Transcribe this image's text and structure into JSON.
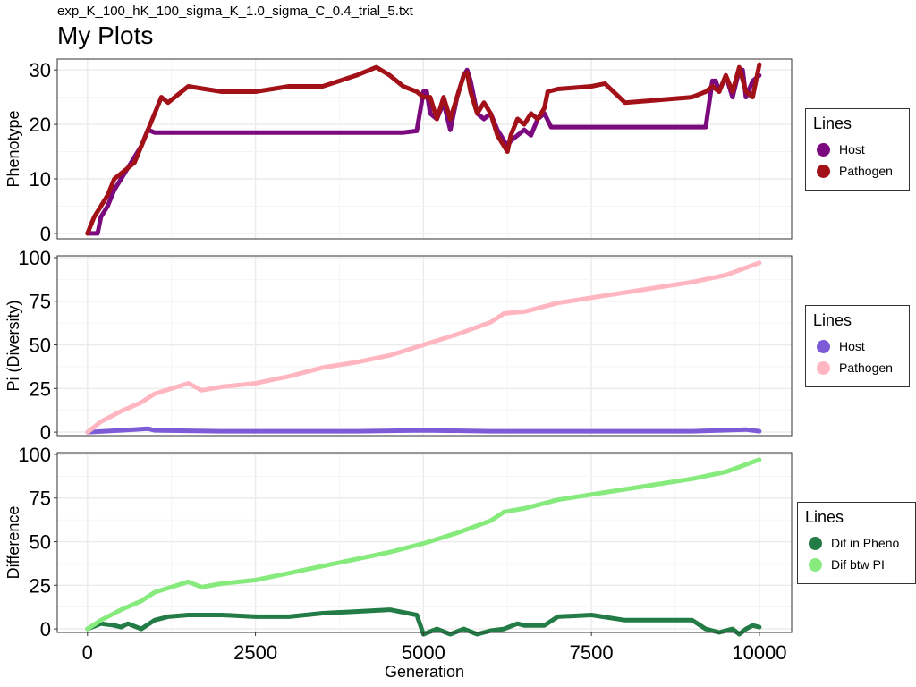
{
  "header": {
    "subtitle": "exp_K_100_hK_100_sigma_K_1.0_sigma_C_0.4_trial_5.txt",
    "title": "My Plots"
  },
  "xaxis": {
    "label": "Generation",
    "ticks": [
      0,
      2500,
      5000,
      7500,
      10000
    ],
    "range": [
      -450,
      10480
    ]
  },
  "panels": [
    {
      "ylabel": "Phenotype",
      "ylim": [
        -1,
        32
      ],
      "yticks": [
        0,
        10,
        20,
        30
      ],
      "legend": {
        "title": "Lines",
        "entries": [
          {
            "label": "Host",
            "color": "#7b0a7e"
          },
          {
            "label": "Pathogen",
            "color": "#a31118"
          }
        ]
      }
    },
    {
      "ylabel": "Pi (Diversity)",
      "ylim": [
        -2,
        101
      ],
      "yticks": [
        0,
        25,
        50,
        75,
        100
      ],
      "legend": {
        "title": "Lines",
        "entries": [
          {
            "label": "Host",
            "color": "#7d5ad6"
          },
          {
            "label": "Pathogen",
            "color": "#ffb6c1"
          }
        ]
      }
    },
    {
      "ylabel": "Difference",
      "ylim": [
        -2,
        101
      ],
      "yticks": [
        0,
        25,
        50,
        75,
        100
      ],
      "legend": {
        "title": "Lines",
        "entries": [
          {
            "label": "Dif in Pheno",
            "color": "#237c46"
          },
          {
            "label": "Dif btw PI",
            "color": "#86ea7d"
          }
        ]
      }
    }
  ],
  "chart_data": [
    {
      "type": "line",
      "title": "",
      "xlabel": "",
      "ylabel": "Phenotype",
      "ylim": [
        -1,
        32
      ],
      "grid": true,
      "legend_position": "right",
      "series": [
        {
          "name": "Host",
          "color": "#7b0a7e",
          "x": [
            0,
            150,
            200,
            300,
            400,
            500,
            550,
            600,
            700,
            800,
            900,
            1000,
            1300,
            2000,
            3000,
            4000,
            4700,
            4900,
            5000,
            5050,
            5100,
            5200,
            5300,
            5400,
            5500,
            5600,
            5650,
            5700,
            5800,
            5900,
            6000,
            6100,
            6200,
            6250,
            6300,
            6400,
            6500,
            6600,
            6700,
            6800,
            6900,
            7000,
            7500,
            8000,
            8500,
            9000,
            9200,
            9300,
            9350,
            9400,
            9500,
            9600,
            9700,
            9750,
            9800,
            9900,
            10000
          ],
          "y": [
            0,
            0,
            3,
            5,
            8,
            10,
            11,
            12,
            14,
            16,
            19,
            18.5,
            18.5,
            18.5,
            18.5,
            18.5,
            18.5,
            18.8,
            26,
            26,
            22,
            21,
            24,
            19,
            25,
            29,
            30,
            28,
            22,
            21,
            22,
            19,
            17,
            16,
            17,
            18,
            19,
            18,
            21,
            22,
            19.5,
            19.5,
            19.5,
            19.5,
            19.5,
            19.5,
            19.5,
            28,
            28,
            26,
            29,
            25,
            30,
            30,
            25,
            28,
            29
          ]
        },
        {
          "name": "Pathogen",
          "color": "#a31118",
          "x": [
            0,
            100,
            200,
            300,
            400,
            500,
            600,
            700,
            800,
            900,
            1000,
            1100,
            1200,
            1500,
            2000,
            2500,
            3000,
            3500,
            4000,
            4300,
            4500,
            4700,
            4900,
            5000,
            5100,
            5200,
            5300,
            5400,
            5500,
            5600,
            5650,
            5700,
            5800,
            5900,
            6000,
            6100,
            6200,
            6250,
            6300,
            6400,
            6500,
            6600,
            6700,
            6800,
            6850,
            7000,
            7500,
            7700,
            8000,
            8500,
            9000,
            9200,
            9300,
            9400,
            9500,
            9600,
            9700,
            9800,
            9900,
            10000
          ],
          "y": [
            0,
            3,
            5,
            7,
            10,
            11,
            12,
            13,
            16,
            19,
            22,
            25,
            24,
            27,
            26,
            26,
            27,
            27,
            29,
            30.5,
            29,
            27,
            26,
            25,
            25,
            21,
            25,
            21,
            25,
            29,
            29.5,
            26,
            22,
            24,
            22,
            18,
            16,
            15,
            18,
            21,
            20,
            22,
            21,
            23,
            26,
            26.5,
            27,
            27.5,
            24,
            24.5,
            25,
            26,
            27,
            26,
            29,
            26,
            30.5,
            26,
            25,
            31
          ]
        }
      ]
    },
    {
      "type": "line",
      "title": "",
      "xlabel": "",
      "ylabel": "Pi (Diversity)",
      "ylim": [
        -2,
        101
      ],
      "grid": true,
      "legend_position": "right",
      "series": [
        {
          "name": "Host",
          "color": "#7d5ad6",
          "x": [
            0,
            500,
            900,
            1000,
            2000,
            3000,
            4000,
            5000,
            6000,
            7000,
            8000,
            9000,
            9800,
            10000
          ],
          "y": [
            0,
            1,
            2,
            1,
            0.5,
            0.5,
            0.5,
            1,
            0.5,
            0.5,
            0.5,
            0.5,
            1.5,
            0.5
          ]
        },
        {
          "name": "Pathogen",
          "color": "#ffb6c1",
          "x": [
            0,
            200,
            500,
            800,
            1000,
            1500,
            1700,
            2000,
            2500,
            3000,
            3500,
            4000,
            4500,
            5000,
            5500,
            6000,
            6200,
            6500,
            7000,
            7500,
            8000,
            8500,
            9000,
            9500,
            10000
          ],
          "y": [
            0,
            6,
            12,
            17,
            22,
            28,
            24,
            26,
            28,
            32,
            37,
            40,
            44,
            50,
            56,
            63,
            68,
            69,
            74,
            77,
            80,
            83,
            86,
            90,
            97
          ]
        }
      ]
    },
    {
      "type": "line",
      "title": "",
      "xlabel": "Generation",
      "ylabel": "Difference",
      "ylim": [
        -2,
        101
      ],
      "grid": true,
      "legend_position": "right",
      "series": [
        {
          "name": "Dif in Pheno",
          "color": "#237c46",
          "x": [
            0,
            200,
            400,
            500,
            600,
            800,
            1000,
            1200,
            1500,
            2000,
            2500,
            3000,
            3500,
            4000,
            4500,
            4900,
            5000,
            5200,
            5400,
            5600,
            5800,
            6000,
            6200,
            6400,
            6500,
            6800,
            7000,
            7500,
            8000,
            8500,
            9000,
            9200,
            9400,
            9600,
            9700,
            9800,
            9900,
            10000
          ],
          "y": [
            0,
            3,
            2,
            1,
            3,
            0,
            5,
            7,
            8,
            8,
            7,
            7,
            9,
            10,
            11,
            8,
            -3,
            0,
            -3,
            0,
            -3,
            -1,
            0,
            3,
            2,
            2,
            7,
            8,
            5,
            5,
            5,
            0,
            -2,
            0,
            -3,
            0,
            2,
            1
          ]
        },
        {
          "name": "Dif btw PI",
          "color": "#86ea7d",
          "x": [
            0,
            200,
            500,
            800,
            1000,
            1500,
            1700,
            2000,
            2500,
            3000,
            3500,
            4000,
            4500,
            5000,
            5500,
            6000,
            6200,
            6500,
            7000,
            7500,
            8000,
            8500,
            9000,
            9500,
            10000
          ],
          "y": [
            0,
            5,
            11,
            16,
            21,
            27,
            24,
            26,
            28,
            32,
            36,
            40,
            44,
            49,
            55,
            62,
            67,
            69,
            74,
            77,
            80,
            83,
            86,
            90,
            97
          ]
        }
      ]
    }
  ]
}
